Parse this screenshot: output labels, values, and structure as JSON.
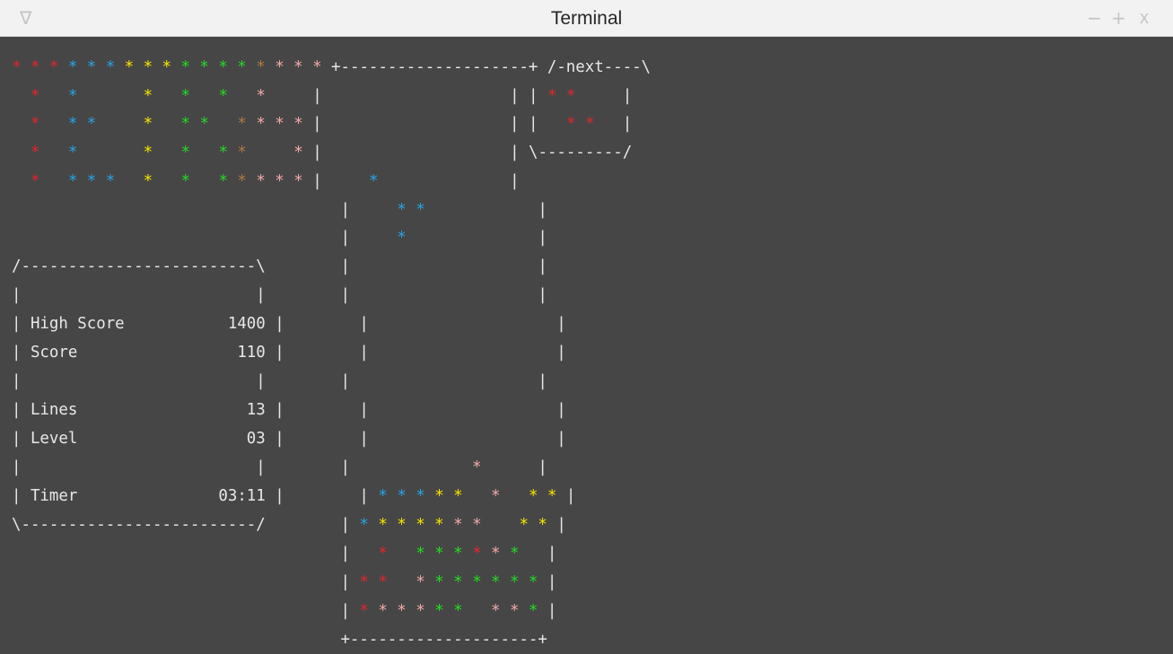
{
  "window": {
    "title": "Terminal",
    "menu_icon": "triangle-down-icon",
    "menu_glyph": "∇",
    "minimize_glyph": "−",
    "maximize_glyph": "+",
    "close_glyph": "x"
  },
  "colors": {
    "r": "#e3262a",
    "b": "#27a3e5",
    "y": "#f7e400",
    "g": "#22dc22",
    "o": "#b07840",
    "p": "#f3a8a8",
    "text": "#e8e8e8",
    "background": "#464646"
  },
  "stats": {
    "high_score_label": "High Score",
    "high_score": "1400",
    "score_label": "Score",
    "score": "110",
    "lines_label": "Lines",
    "lines": "13",
    "level_label": "Level",
    "level": "03",
    "timer_label": "Timer",
    "timer": "03:11"
  },
  "next_label": "next",
  "terminal_lines": [
    [
      [
        "r",
        "* * * "
      ],
      [
        "b",
        "* * * "
      ],
      [
        "y",
        "* * * "
      ],
      [
        "g",
        "* * * * "
      ],
      [
        "o",
        "* "
      ],
      [
        "p",
        "* * * "
      ],
      [
        "",
        "+--------------------+ /-next----\\"
      ]
    ],
    [
      [
        "",
        "  "
      ],
      [
        "r",
        "*"
      ],
      [
        "",
        "   "
      ],
      [
        "b",
        "*"
      ],
      [
        "",
        "       "
      ],
      [
        "y",
        "*"
      ],
      [
        "",
        "   "
      ],
      [
        "g",
        "*"
      ],
      [
        "",
        "   "
      ],
      [
        "g",
        "*"
      ],
      [
        "",
        "   "
      ],
      [
        "p",
        "*"
      ],
      [
        "",
        "     |                    | | "
      ],
      [
        "r",
        "* *"
      ],
      [
        "",
        "     |"
      ]
    ],
    [
      [
        "",
        "  "
      ],
      [
        "r",
        "*"
      ],
      [
        "",
        "   "
      ],
      [
        "b",
        "* *"
      ],
      [
        "",
        "     "
      ],
      [
        "y",
        "*"
      ],
      [
        "",
        "   "
      ],
      [
        "g",
        "* *"
      ],
      [
        "",
        "   "
      ],
      [
        "o",
        "*"
      ],
      [
        "p",
        " * * *"
      ],
      [
        "",
        " |                    | |   "
      ],
      [
        "r",
        "* *"
      ],
      [
        "",
        "   |"
      ]
    ],
    [
      [
        "",
        "  "
      ],
      [
        "r",
        "*"
      ],
      [
        "",
        "   "
      ],
      [
        "b",
        "*"
      ],
      [
        "",
        "       "
      ],
      [
        "y",
        "*"
      ],
      [
        "",
        "   "
      ],
      [
        "g",
        "*"
      ],
      [
        "",
        "   "
      ],
      [
        "g",
        "*"
      ],
      [
        "o",
        " *"
      ],
      [
        "",
        "     "
      ],
      [
        "p",
        "*"
      ],
      [
        "",
        " |                    | \\---------/"
      ]
    ],
    [
      [
        "",
        "  "
      ],
      [
        "r",
        "*"
      ],
      [
        "",
        "   "
      ],
      [
        "b",
        "* * *"
      ],
      [
        "",
        "   "
      ],
      [
        "y",
        "*"
      ],
      [
        "",
        "   "
      ],
      [
        "g",
        "*"
      ],
      [
        "",
        "   "
      ],
      [
        "g",
        "*"
      ],
      [
        "o",
        " *"
      ],
      [
        "p",
        " * * *"
      ],
      [
        "",
        " |     "
      ],
      [
        "b",
        "*"
      ],
      [
        "",
        "              |"
      ]
    ],
    [
      [
        "",
        "                                   |     "
      ],
      [
        "b",
        "* *"
      ],
      [
        "",
        "            |"
      ]
    ],
    [
      [
        "",
        "                                   |     "
      ],
      [
        "b",
        "*"
      ],
      [
        "",
        "              |"
      ]
    ],
    [
      [
        "",
        "/-------------------------\\        |                    |"
      ]
    ],
    [
      [
        "",
        "|                         |        |                    |"
      ]
    ],
    [
      [
        "",
        "| "
      ],
      [
        "",
        "{high_score_label}"
      ],
      [
        "",
        "           "
      ],
      [
        "",
        "{high_score}"
      ],
      [
        "",
        " |        |                    |"
      ]
    ],
    [
      [
        "",
        "| "
      ],
      [
        "",
        "{score_label}"
      ],
      [
        "",
        "                 "
      ],
      [
        "",
        "{score}"
      ],
      [
        "",
        " |        |                    |"
      ]
    ],
    [
      [
        "",
        "|                         |        |                    |"
      ]
    ],
    [
      [
        "",
        "| "
      ],
      [
        "",
        "{lines_label}"
      ],
      [
        "",
        "                  "
      ],
      [
        "",
        "{lines}"
      ],
      [
        "",
        " |        |                    |"
      ]
    ],
    [
      [
        "",
        "| "
      ],
      [
        "",
        "{level_label}"
      ],
      [
        "",
        "                  "
      ],
      [
        "",
        "{level}"
      ],
      [
        "",
        " |        |                    |"
      ]
    ],
    [
      [
        "",
        "|                         |        |             "
      ],
      [
        "p",
        "*"
      ],
      [
        "",
        "      |"
      ]
    ],
    [
      [
        "",
        "| "
      ],
      [
        "",
        "{timer_label}"
      ],
      [
        "",
        "               "
      ],
      [
        "",
        "{timer}"
      ],
      [
        "",
        " |        | "
      ],
      [
        "b",
        "* * * "
      ],
      [
        "y",
        "* *"
      ],
      [
        "",
        "   "
      ],
      [
        "p",
        "*"
      ],
      [
        "",
        "   "
      ],
      [
        "y",
        "* *"
      ],
      [
        "",
        " |"
      ]
    ],
    [
      [
        "",
        "\\-------------------------/        | "
      ],
      [
        "b",
        "* "
      ],
      [
        "y",
        "* * * * "
      ],
      [
        "p",
        "* * "
      ],
      [
        "",
        "   "
      ],
      [
        "y",
        "* *"
      ],
      [
        "",
        " |"
      ]
    ],
    [
      [
        "",
        "                                   |   "
      ],
      [
        "r",
        "*"
      ],
      [
        "",
        "   "
      ],
      [
        "g",
        "* * * "
      ],
      [
        "r",
        "* "
      ],
      [
        "p",
        "* "
      ],
      [
        "g",
        "*"
      ],
      [
        "",
        "   |"
      ]
    ],
    [
      [
        "",
        "                                   | "
      ],
      [
        "r",
        "* *"
      ],
      [
        "",
        "   "
      ],
      [
        "p",
        "* "
      ],
      [
        "g",
        "* * * * * * "
      ],
      [
        "",
        "|"
      ]
    ],
    [
      [
        "",
        "                                   | "
      ],
      [
        "r",
        "* "
      ],
      [
        "p",
        "* * * "
      ],
      [
        "g",
        "* *"
      ],
      [
        "",
        "   "
      ],
      [
        "p",
        "* * "
      ],
      [
        "g",
        "*"
      ],
      [
        "",
        " |"
      ]
    ],
    [
      [
        "",
        "                                   +--------------------+"
      ]
    ]
  ]
}
